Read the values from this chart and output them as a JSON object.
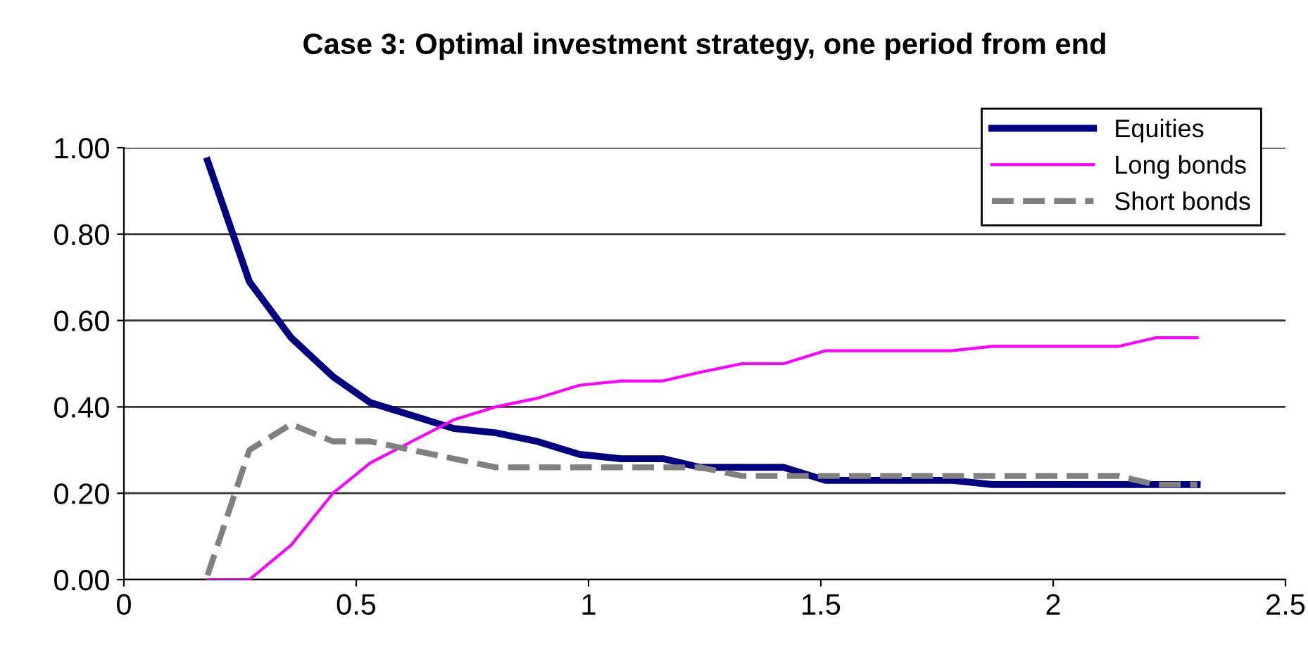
{
  "chart_data": {
    "type": "line",
    "title": "Case 3: Optimal investment strategy, one period from end",
    "x": [
      0.18,
      0.27,
      0.36,
      0.45,
      0.53,
      0.62,
      0.71,
      0.8,
      0.89,
      0.98,
      1.07,
      1.16,
      1.24,
      1.33,
      1.42,
      1.51,
      1.6,
      1.69,
      1.78,
      1.87,
      1.96,
      2.05,
      2.14,
      2.22,
      2.31
    ],
    "series": [
      {
        "name": "Equities",
        "color": "#000080",
        "values": [
          0.97,
          0.69,
          0.56,
          0.47,
          0.41,
          0.38,
          0.35,
          0.34,
          0.32,
          0.29,
          0.28,
          0.28,
          0.26,
          0.26,
          0.26,
          0.23,
          0.23,
          0.23,
          0.23,
          0.22,
          0.22,
          0.22,
          0.22,
          0.22,
          0.22
        ]
      },
      {
        "name": "Long bonds",
        "color": "#ff00ff",
        "values": [
          0.0,
          0.0,
          0.08,
          0.2,
          0.27,
          0.32,
          0.37,
          0.4,
          0.42,
          0.45,
          0.46,
          0.46,
          0.48,
          0.5,
          0.5,
          0.53,
          0.53,
          0.53,
          0.53,
          0.54,
          0.54,
          0.54,
          0.54,
          0.56,
          0.56
        ]
      },
      {
        "name": "Short bonds",
        "color": "#808080",
        "line_style": "dashed",
        "values": [
          0.01,
          0.3,
          0.36,
          0.32,
          0.32,
          0.3,
          0.28,
          0.26,
          0.26,
          0.26,
          0.26,
          0.26,
          0.26,
          0.24,
          0.24,
          0.24,
          0.24,
          0.24,
          0.24,
          0.24,
          0.24,
          0.24,
          0.24,
          0.22,
          0.22
        ]
      }
    ],
    "xlim": [
      0,
      2.5
    ],
    "xticks": [
      0,
      0.5,
      1,
      1.5,
      2,
      2.5
    ],
    "ylim": [
      0,
      1.0
    ],
    "yticks": [
      {
        "value": 0,
        "label": "0.00"
      },
      {
        "value": 0.2,
        "label": "0.20"
      },
      {
        "value": 0.4,
        "label": "0.40"
      },
      {
        "value": 0.6,
        "label": "0.60"
      },
      {
        "value": 0.8,
        "label": "0.80"
      },
      {
        "value": 1.0,
        "label": "1.00"
      }
    ],
    "grid": "y",
    "legend": "top right"
  }
}
